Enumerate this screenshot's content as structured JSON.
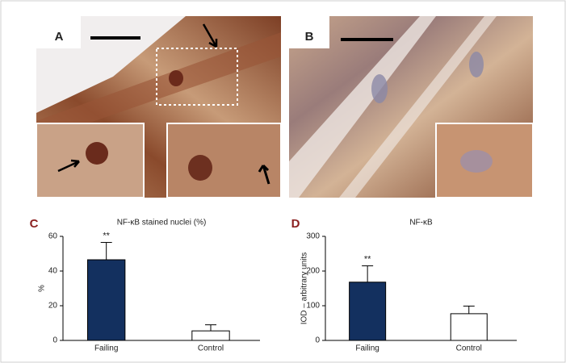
{
  "image_panels": [
    {
      "label": "A"
    },
    {
      "label": "B"
    }
  ],
  "chart_data": [
    {
      "type": "bar",
      "panel_label": "C",
      "title": "NF-κB stained nuclei (%)",
      "y_label": "%",
      "categories": [
        "Failing",
        "Control"
      ],
      "values": [
        46.5,
        5.5
      ],
      "errors": [
        10,
        3.5
      ],
      "colors": [
        "#13305f",
        "#ffffff"
      ],
      "annotations": [
        "**",
        null
      ],
      "ylim": [
        0,
        60
      ],
      "yticks": [
        0,
        20,
        40,
        60
      ]
    },
    {
      "type": "bar",
      "panel_label": "D",
      "title": "NF-κB",
      "y_label": "IOD – arbitrary units",
      "categories": [
        "Failing",
        "Control"
      ],
      "values": [
        168,
        77
      ],
      "errors": [
        47,
        22
      ],
      "colors": [
        "#13305f",
        "#ffffff"
      ],
      "annotations": [
        "**",
        null
      ],
      "ylim": [
        0,
        300
      ],
      "yticks": [
        0,
        100,
        200,
        300
      ]
    }
  ]
}
